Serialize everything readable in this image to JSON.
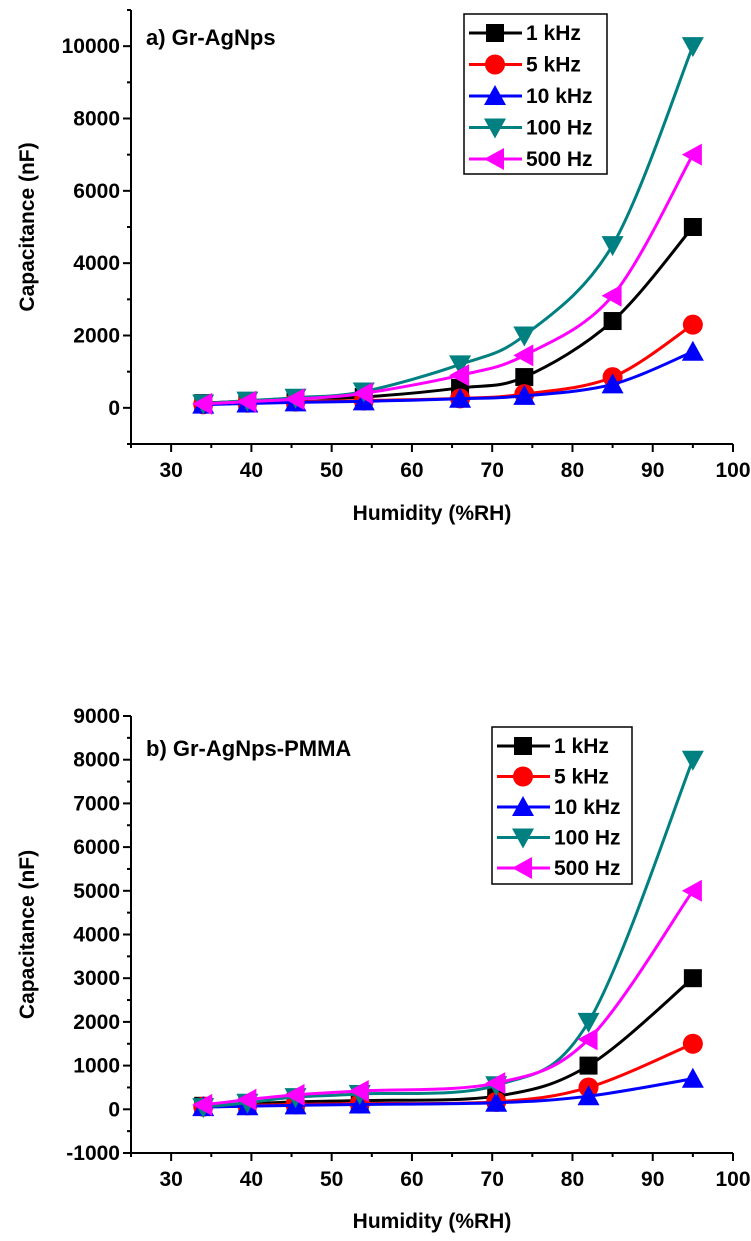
{
  "chart_data": [
    {
      "type": "line",
      "title": "a) Gr-AgNps",
      "xlabel": "Humidity (%RH)",
      "ylabel": "Capacitance (nF)",
      "xlim": [
        25,
        100
      ],
      "ylim": [
        -1000,
        11000
      ],
      "xticks": [
        30,
        40,
        50,
        60,
        70,
        80,
        90,
        100
      ],
      "yticks": [
        0,
        2000,
        4000,
        6000,
        8000,
        10000
      ],
      "x_tick_labels": [
        "30",
        "40",
        "50",
        "60",
        "70",
        "80",
        "90",
        "100"
      ],
      "y_tick_labels": [
        "0",
        "2000",
        "4000",
        "6000",
        "8000",
        "10000"
      ],
      "grid": false,
      "legend": "top-right",
      "series": [
        {
          "name": "1 kHz",
          "color": "#000000",
          "marker": "square",
          "x": [
            34,
            39.5,
            45.5,
            54,
            66,
            74,
            85,
            95
          ],
          "y": [
            130,
            190,
            260,
            300,
            550,
            850,
            2400,
            5000
          ]
        },
        {
          "name": "5 kHz",
          "color": "#ff0000",
          "marker": "circle",
          "x": [
            34,
            39.5,
            45.5,
            54,
            66,
            74,
            85,
            95
          ],
          "y": [
            100,
            140,
            170,
            200,
            260,
            380,
            850,
            2300
          ]
        },
        {
          "name": "10 kHz",
          "color": "#0000ff",
          "marker": "triangle-up",
          "x": [
            34,
            39.5,
            45.5,
            54,
            66,
            74,
            85,
            95
          ],
          "y": [
            90,
            120,
            150,
            180,
            250,
            330,
            650,
            1550
          ]
        },
        {
          "name": "100 Hz",
          "color": "#008080",
          "marker": "triangle-down",
          "x": [
            34,
            39.5,
            45.5,
            54,
            66,
            74,
            85,
            95
          ],
          "y": [
            120,
            200,
            280,
            450,
            1200,
            2000,
            4500,
            10000
          ]
        },
        {
          "name": "500 Hz",
          "color": "#ff00ff",
          "marker": "triangle-left",
          "x": [
            34,
            39.5,
            45.5,
            54,
            66,
            74,
            85,
            95
          ],
          "y": [
            110,
            170,
            240,
            400,
            900,
            1450,
            3100,
            7000
          ]
        }
      ]
    },
    {
      "type": "line",
      "title": "b) Gr-AgNps-PMMA",
      "xlabel": "Humidity (%RH)",
      "ylabel": "Capacitance (nF)",
      "xlim": [
        25,
        100
      ],
      "ylim": [
        -1000,
        9000
      ],
      "xticks": [
        30,
        40,
        50,
        60,
        70,
        80,
        90,
        100
      ],
      "yticks": [
        -1000,
        0,
        1000,
        2000,
        3000,
        4000,
        5000,
        6000,
        7000,
        8000,
        9000
      ],
      "x_tick_labels": [
        "30",
        "40",
        "50",
        "60",
        "70",
        "80",
        "90",
        "100"
      ],
      "y_tick_labels": [
        "-1000",
        "0",
        "1000",
        "2000",
        "3000",
        "4000",
        "5000",
        "6000",
        "7000",
        "8000",
        "9000"
      ],
      "grid": false,
      "legend": "top-right",
      "series": [
        {
          "name": "1 kHz",
          "color": "#000000",
          "marker": "square",
          "x": [
            34,
            39.5,
            45.5,
            53.5,
            70.5,
            82,
            95
          ],
          "y": [
            80,
            120,
            170,
            200,
            300,
            1000,
            3000
          ]
        },
        {
          "name": "5 kHz",
          "color": "#ff0000",
          "marker": "circle",
          "x": [
            34,
            39.5,
            45.5,
            53.5,
            70.5,
            82,
            95
          ],
          "y": [
            60,
            90,
            110,
            130,
            170,
            500,
            1500
          ]
        },
        {
          "name": "10 kHz",
          "color": "#0000ff",
          "marker": "triangle-up",
          "x": [
            34,
            39.5,
            45.5,
            53.5,
            70.5,
            82,
            95
          ],
          "y": [
            50,
            70,
            90,
            110,
            150,
            300,
            700
          ]
        },
        {
          "name": "100 Hz",
          "color": "#008080",
          "marker": "triangle-down",
          "x": [
            34,
            39.5,
            45.5,
            53.5,
            70.5,
            82,
            95
          ],
          "y": [
            50,
            150,
            280,
            350,
            550,
            2000,
            8000
          ]
        },
        {
          "name": "500 Hz",
          "color": "#ff00ff",
          "marker": "triangle-left",
          "x": [
            34,
            39.5,
            45.5,
            53.5,
            70.5,
            82,
            95
          ],
          "y": [
            100,
            220,
            330,
            420,
            600,
            1600,
            5000
          ]
        }
      ]
    }
  ]
}
